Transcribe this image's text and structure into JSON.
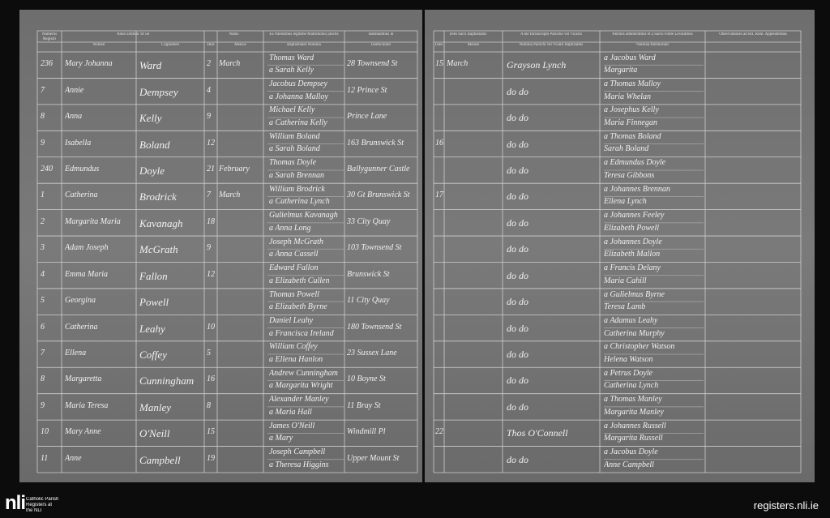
{
  "register": {
    "left_headers": [
      "Numerus Registri",
      "Anno Domini 18 58",
      "Nomen",
      "Cognomen",
      "Natus",
      "Dies",
      "Mensis",
      "Ex Parentibus legitime Matrimonio junctis",
      "Baptismales Nomina",
      "Habitantibus in",
      "Domicilium"
    ],
    "right_headers": [
      "Dies Sacri Baptismatis",
      "Dies",
      "Mensis",
      "A me Infrascripto Parocho vel Vicario",
      "Nomina Parochi vel Vicarii Baptizantis",
      "Patrinis adhibentibus et a Sacro Fonte Levantibus",
      "Nomina Patrinorum",
      "Observationes ad Rit. Rom. Appendendas"
    ],
    "rows": [
      [
        "236",
        "Mary Johanna",
        "Ward",
        "2",
        "March",
        "Thomas Ward",
        "a Sarah Kelly",
        "28 Townsend St",
        "15",
        "March",
        "Grayson Lynch",
        "a Jacobus Ward",
        "Margarita"
      ],
      [
        "7",
        "Annie",
        "Dempsey",
        "4",
        null,
        "Jacobus Dempsey",
        "a Johanna Malloy",
        "12 Prince St",
        null,
        null,
        "do do",
        "a Thomas Malloy",
        "Maria Whelan"
      ],
      [
        "8",
        "Anna",
        "Kelly",
        "9",
        null,
        "Michael Kelly",
        "a Catherina Kelly",
        "Prince Lane",
        null,
        null,
        "do do",
        "a Josephus Kelly",
        "Maria Finnegan"
      ],
      [
        "9",
        "Isabella",
        "Boland",
        "12",
        null,
        "William Boland",
        "a Sarah Boland",
        "163 Brunswick St",
        "16",
        null,
        "do do",
        "a Thomas Boland",
        "Sarah Boland"
      ],
      [
        "240",
        "Edmundus",
        "Doyle",
        "21",
        "February",
        "Thomas Doyle",
        "a Sarah Brennan",
        "Ballygunner Castle",
        null,
        null,
        "do do",
        "a Edmundus Doyle",
        "Teresa Gibbons"
      ],
      [
        "1",
        "Catherina",
        "Brodrick",
        "7",
        "March",
        "William Brodrick",
        "a Catherina Lynch",
        "30 Gt Brunswick St",
        "17",
        null,
        "do do",
        "a Johannes Brennan",
        "Ellena Lynch"
      ],
      [
        "2",
        "Margarita Maria",
        "Kavanagh",
        "18",
        null,
        "Gulielmus Kavanagh",
        "a Anna Long",
        "33 City Quay",
        null,
        null,
        "do do",
        "a Johannes Feeley",
        "Elizabeth Powell"
      ],
      [
        "3",
        "Adam Joseph",
        "McGrath",
        "9",
        null,
        "Joseph McGrath",
        "a Anna Cassell",
        "103 Townsend St",
        null,
        null,
        "do do",
        "a Johannes Doyle",
        "Elizabeth Mallon"
      ],
      [
        "4",
        "Emma Maria",
        "Fallon",
        "12",
        null,
        "Edward Fallon",
        "a Elizabeth Cullen",
        "Brunswick St",
        null,
        null,
        "do do",
        "a Francis Delany",
        "Maria Cahill"
      ],
      [
        "5",
        "Georgina",
        "Powell",
        null,
        null,
        "Thomas Powell",
        "a Elizabeth Byrne",
        "11 City Quay",
        null,
        null,
        "do do",
        "a Gulielmus Byrne",
        "Teresa Lamb"
      ],
      [
        "6",
        "Catherina",
        "Leahy",
        "10",
        null,
        "Daniel Leahy",
        "a Francisca Ireland",
        "180 Townsend St",
        null,
        null,
        "do do",
        "a Adamus Leahy",
        "Catherina Murphy"
      ],
      [
        "7",
        "Ellena",
        "Coffey",
        "5",
        null,
        "William Coffey",
        "a Ellena Hanlon",
        "23 Sussex Lane",
        null,
        null,
        "do do",
        "a Christopher Watson",
        "Helena Watson"
      ],
      [
        "8",
        "Margaretta",
        "Cunningham",
        "16",
        null,
        "Andrew Cunningham",
        "a Margarita Wright",
        "10 Boyne St",
        null,
        null,
        "do do",
        "a Petrus Doyle",
        "Catherina Lynch"
      ],
      [
        "9",
        "Maria Teresa",
        "Manley",
        "8",
        null,
        "Alexander Manley",
        "a Maria Hall",
        "11 Bray St",
        null,
        null,
        "do do",
        "a Thomas Manley",
        "Margarita Manley"
      ],
      [
        "10",
        "Mary Anne",
        "O'Neill",
        "15",
        null,
        "James O'Neill",
        "a Mary",
        "Windmill Pl",
        "22",
        null,
        "Thos O'Connell",
        "a Johannes Russell",
        "Margarita Russell"
      ],
      [
        "11",
        "Anne",
        "Campbell",
        "19",
        null,
        "Joseph Campbell",
        "a Theresa Higgins",
        "Upper Mount St",
        null,
        null,
        "do do",
        "a Jacobus Doyle",
        "Anne Campbell"
      ]
    ]
  },
  "footer": {
    "logo": "nli",
    "logo_text": [
      "Catholic Parish",
      "Registers at",
      "the NLI"
    ],
    "site": "registers.nli.ie"
  }
}
